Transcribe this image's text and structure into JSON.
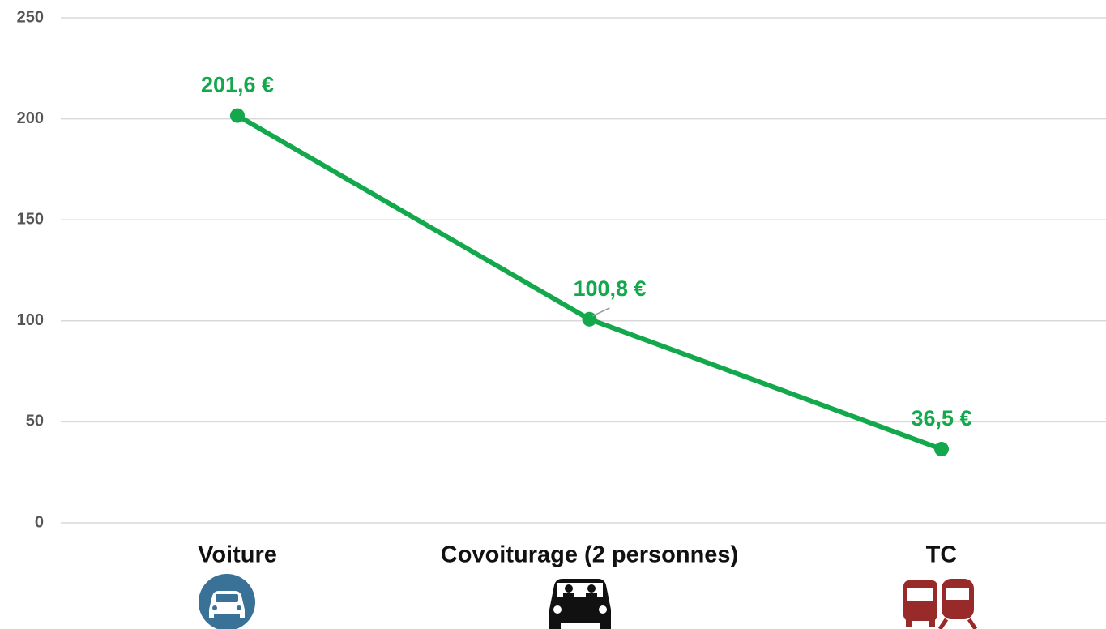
{
  "chart_data": {
    "type": "line",
    "categories": [
      "Voiture",
      "Covoiturage (2 personnes)",
      "TC"
    ],
    "series": [
      {
        "color": "#12a84b",
        "values": [
          201.6,
          100.8,
          36.5
        ],
        "value_labels": [
          "201,6 €",
          "100,8 €",
          "36,5 €"
        ]
      }
    ],
    "ylim": [
      0,
      250
    ],
    "yticks": [
      0,
      50,
      100,
      150,
      200,
      250
    ],
    "grid": true
  }
}
